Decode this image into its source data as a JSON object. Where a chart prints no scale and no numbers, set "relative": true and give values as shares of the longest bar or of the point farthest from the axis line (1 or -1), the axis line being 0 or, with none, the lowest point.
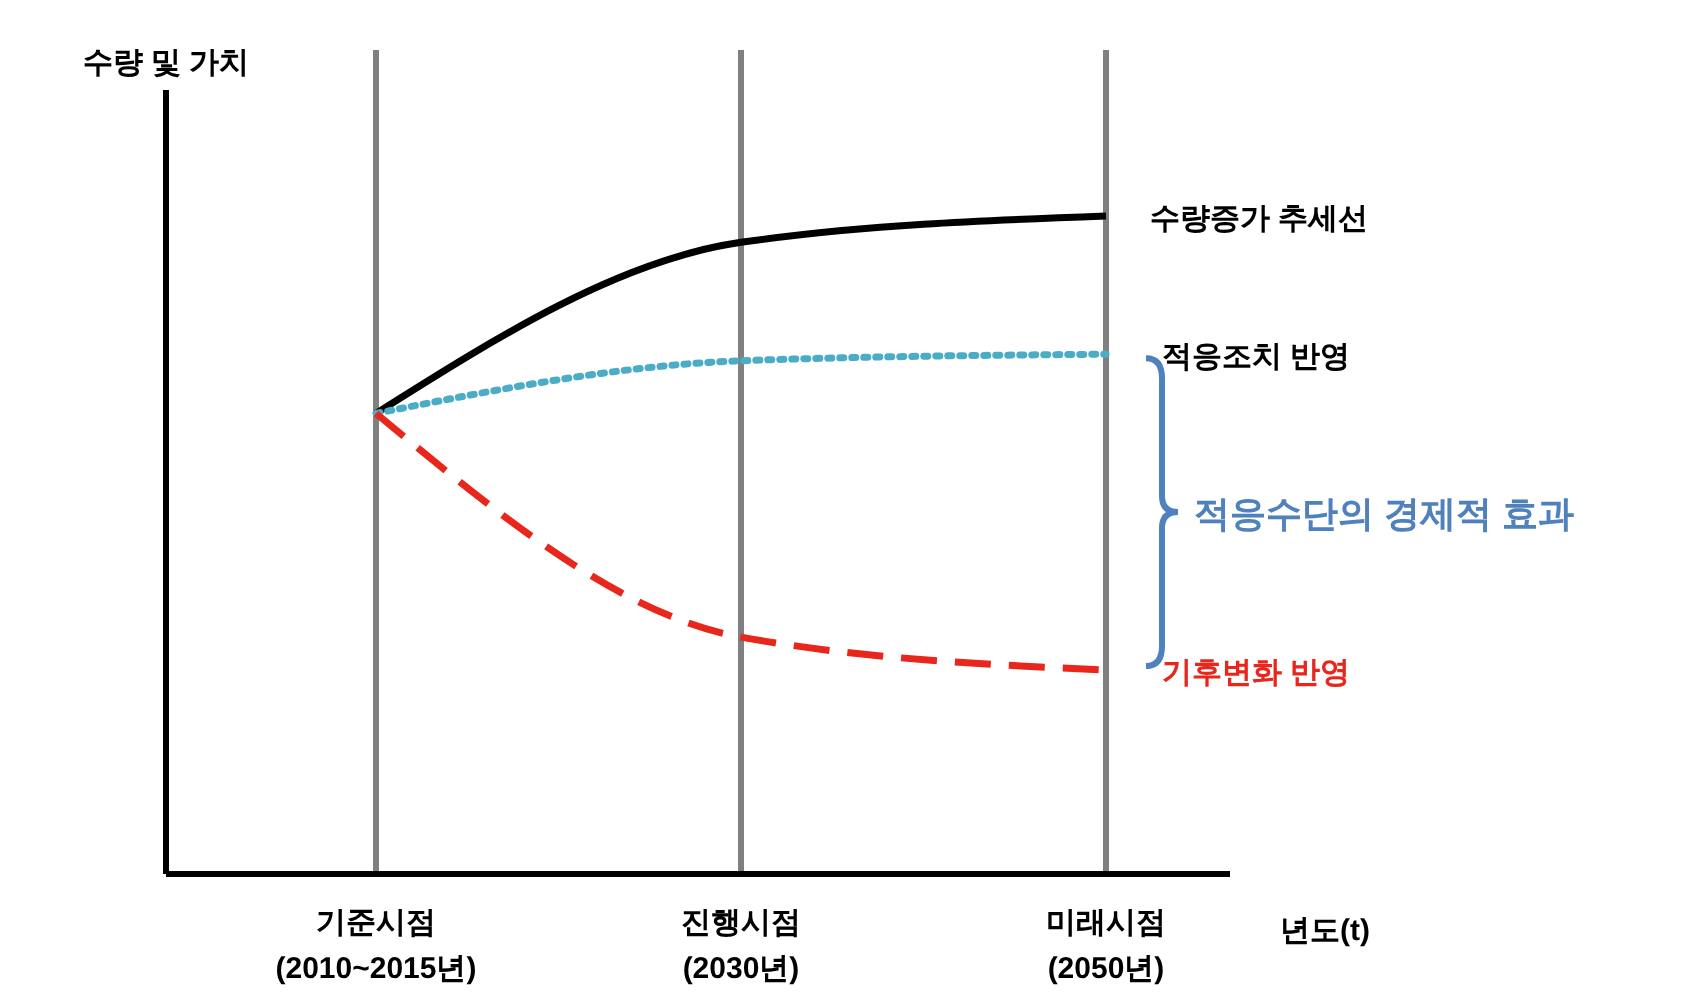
{
  "chart_data": {
    "type": "line",
    "relative": true,
    "ylabel": "수량 및 가치",
    "xlabel": "년도(t)",
    "categories": [
      "기준시점\n(2010~2015년)",
      "진행시점\n(2030년)",
      "미래시점\n(2050년)"
    ],
    "series": [
      {
        "name": "수량증가 추세선",
        "color": "#000000",
        "line_style": "solid",
        "values": [
          0.7,
          0.96,
          1
        ]
      },
      {
        "name": "적응조치 반영",
        "color": "#4bacc6",
        "line_style": "dotted",
        "values": [
          0.7,
          0.78,
          0.79
        ]
      },
      {
        "name": "기후변화 반영",
        "color": "#e8261c",
        "line_style": "dashed",
        "values": [
          0.7,
          0.36,
          0.31
        ]
      }
    ],
    "annotations": [
      "적응수단의 경제적 효과"
    ],
    "grid": "x",
    "marker": "none"
  }
}
